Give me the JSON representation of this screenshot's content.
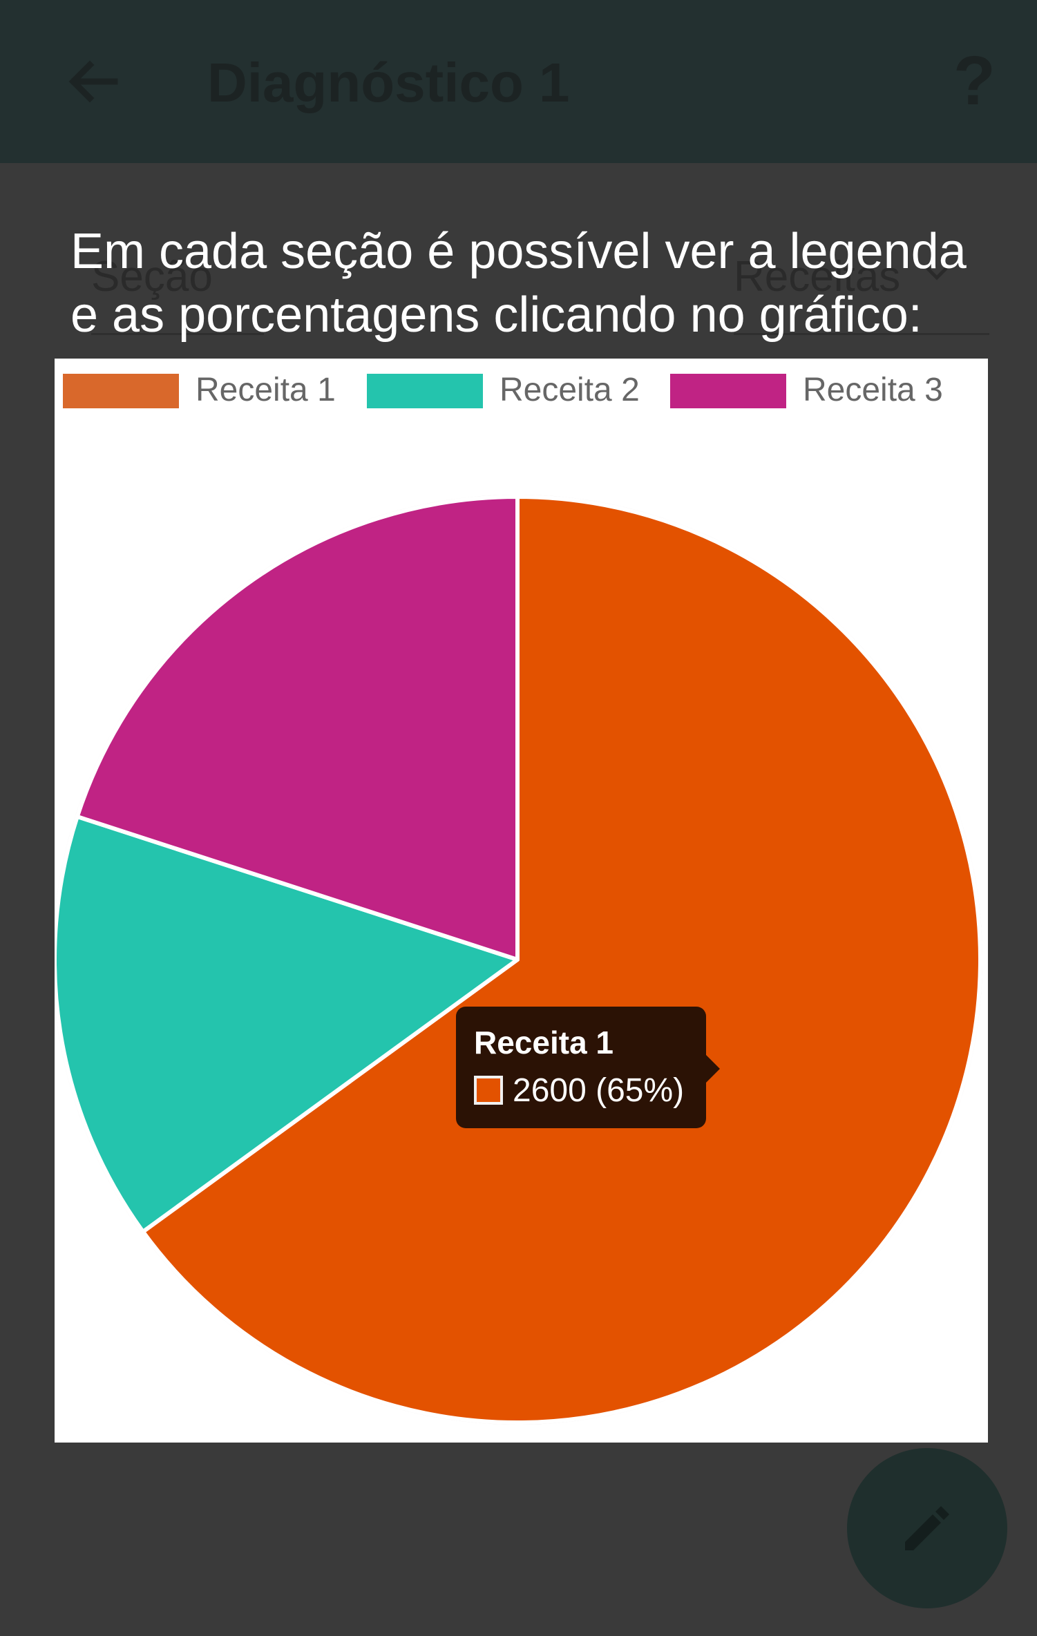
{
  "appbar": {
    "title": "Diagnóstico 1",
    "help_label": "?",
    "back_icon": "arrow-left-icon"
  },
  "filters": {
    "section_label": "Seção",
    "type_label": "Receitas",
    "dropdown_icon": "chevron-down-icon"
  },
  "overlay": {
    "line1": "Em cada seção é possível ver a legenda",
    "line2": "e as porcentagens clicando no gráfico:"
  },
  "legend": {
    "items": [
      {
        "label": "Receita 1"
      },
      {
        "label": "Receita 2"
      },
      {
        "label": "Receita 3"
      }
    ]
  },
  "chart_data": {
    "type": "pie",
    "categories": [
      "Receita 1",
      "Receita 2",
      "Receita 3"
    ],
    "values": [
      2600,
      600,
      800
    ],
    "percentages": [
      65,
      15,
      20
    ],
    "colors": [
      "#e35200",
      "#24c4ad",
      "#c02384"
    ],
    "legend_position": "top",
    "title": ""
  },
  "tooltip": {
    "title": "Receita 1",
    "value": "2600 (65%)"
  },
  "fab": {
    "icon": "pencil-icon"
  },
  "colors": {
    "appbar": "#233030",
    "background": "#3a3a3a",
    "receita1": "#e35200",
    "receita2": "#24c4ad",
    "receita3": "#c02384"
  }
}
